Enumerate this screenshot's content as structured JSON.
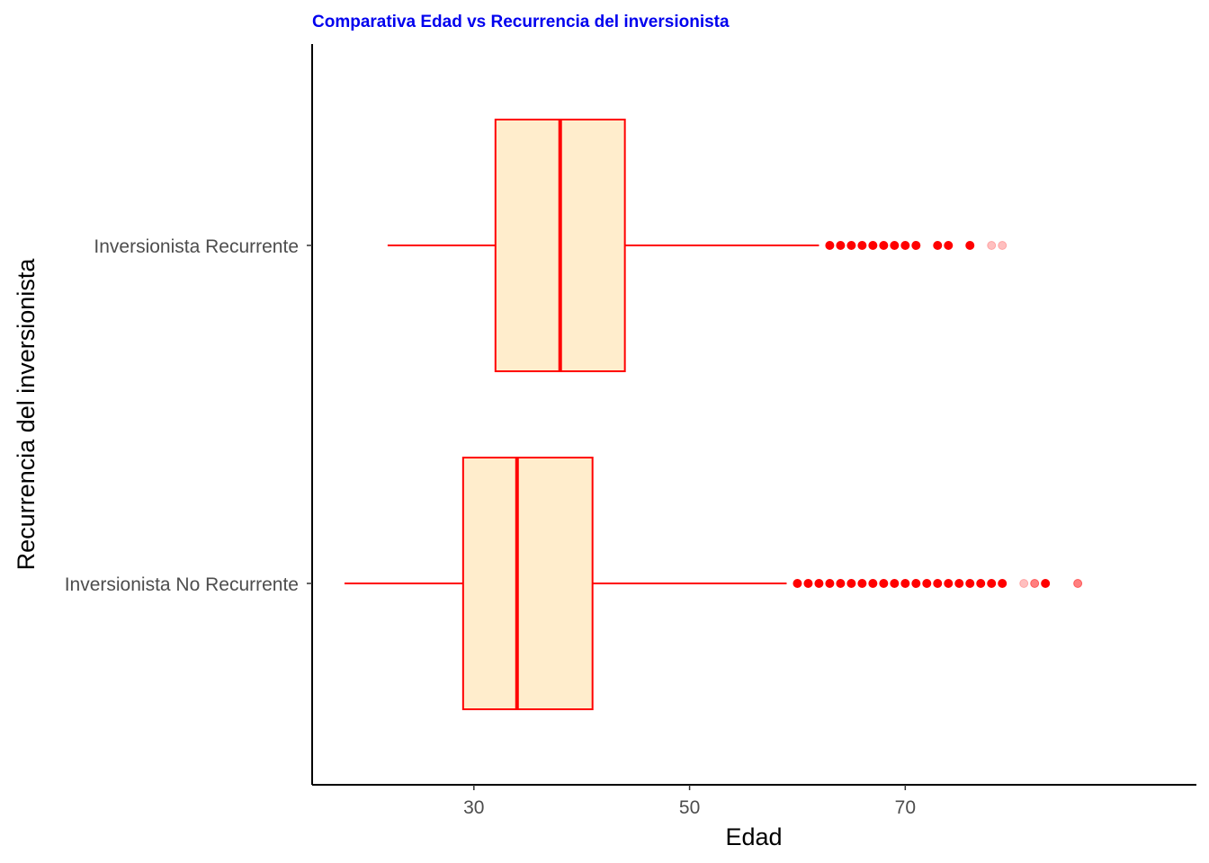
{
  "chart_data": {
    "type": "boxplot",
    "orientation": "horizontal",
    "title": "Comparativa Edad vs Recurrencia del inversionista",
    "xlabel": "Edad",
    "ylabel": "Recurrencia del inversionista",
    "x_ticks": [
      30,
      50,
      70
    ],
    "xlim": [
      15,
      97
    ],
    "grid": false,
    "legend": "none",
    "colors": {
      "title": "#0000ee",
      "box_fill": "#ffedcc",
      "box_stroke": "#ff0000",
      "outlier": "#ff0000"
    },
    "categories": [
      "Inversionista Recurrente",
      "Inversionista No Recurrente"
    ],
    "series": [
      {
        "category": "Inversionista Recurrente",
        "whisker_low": 22,
        "q1": 32,
        "median": 38,
        "q3": 44,
        "whisker_high": 62,
        "outliers": [
          {
            "value": 63,
            "opacity": 1
          },
          {
            "value": 64,
            "opacity": 1
          },
          {
            "value": 65,
            "opacity": 1
          },
          {
            "value": 66,
            "opacity": 1
          },
          {
            "value": 67,
            "opacity": 1
          },
          {
            "value": 68,
            "opacity": 1
          },
          {
            "value": 69,
            "opacity": 1
          },
          {
            "value": 70,
            "opacity": 1
          },
          {
            "value": 71,
            "opacity": 1
          },
          {
            "value": 73,
            "opacity": 1
          },
          {
            "value": 74,
            "opacity": 1
          },
          {
            "value": 76,
            "opacity": 1
          },
          {
            "value": 78,
            "opacity": 0.25
          },
          {
            "value": 79,
            "opacity": 0.25
          }
        ]
      },
      {
        "category": "Inversionista No Recurrente",
        "whisker_low": 18,
        "q1": 29,
        "median": 34,
        "q3": 41,
        "whisker_high": 59,
        "outliers": [
          {
            "value": 60,
            "opacity": 1
          },
          {
            "value": 61,
            "opacity": 1
          },
          {
            "value": 62,
            "opacity": 1
          },
          {
            "value": 63,
            "opacity": 1
          },
          {
            "value": 64,
            "opacity": 1
          },
          {
            "value": 65,
            "opacity": 1
          },
          {
            "value": 66,
            "opacity": 1
          },
          {
            "value": 67,
            "opacity": 1
          },
          {
            "value": 68,
            "opacity": 1
          },
          {
            "value": 69,
            "opacity": 1
          },
          {
            "value": 70,
            "opacity": 1
          },
          {
            "value": 71,
            "opacity": 1
          },
          {
            "value": 72,
            "opacity": 1
          },
          {
            "value": 73,
            "opacity": 1
          },
          {
            "value": 74,
            "opacity": 1
          },
          {
            "value": 75,
            "opacity": 1
          },
          {
            "value": 76,
            "opacity": 1
          },
          {
            "value": 77,
            "opacity": 1
          },
          {
            "value": 78,
            "opacity": 1
          },
          {
            "value": 79,
            "opacity": 1
          },
          {
            "value": 81,
            "opacity": 0.25
          },
          {
            "value": 82,
            "opacity": 0.5
          },
          {
            "value": 83,
            "opacity": 1
          },
          {
            "value": 86,
            "opacity": 0.5
          }
        ]
      }
    ]
  }
}
